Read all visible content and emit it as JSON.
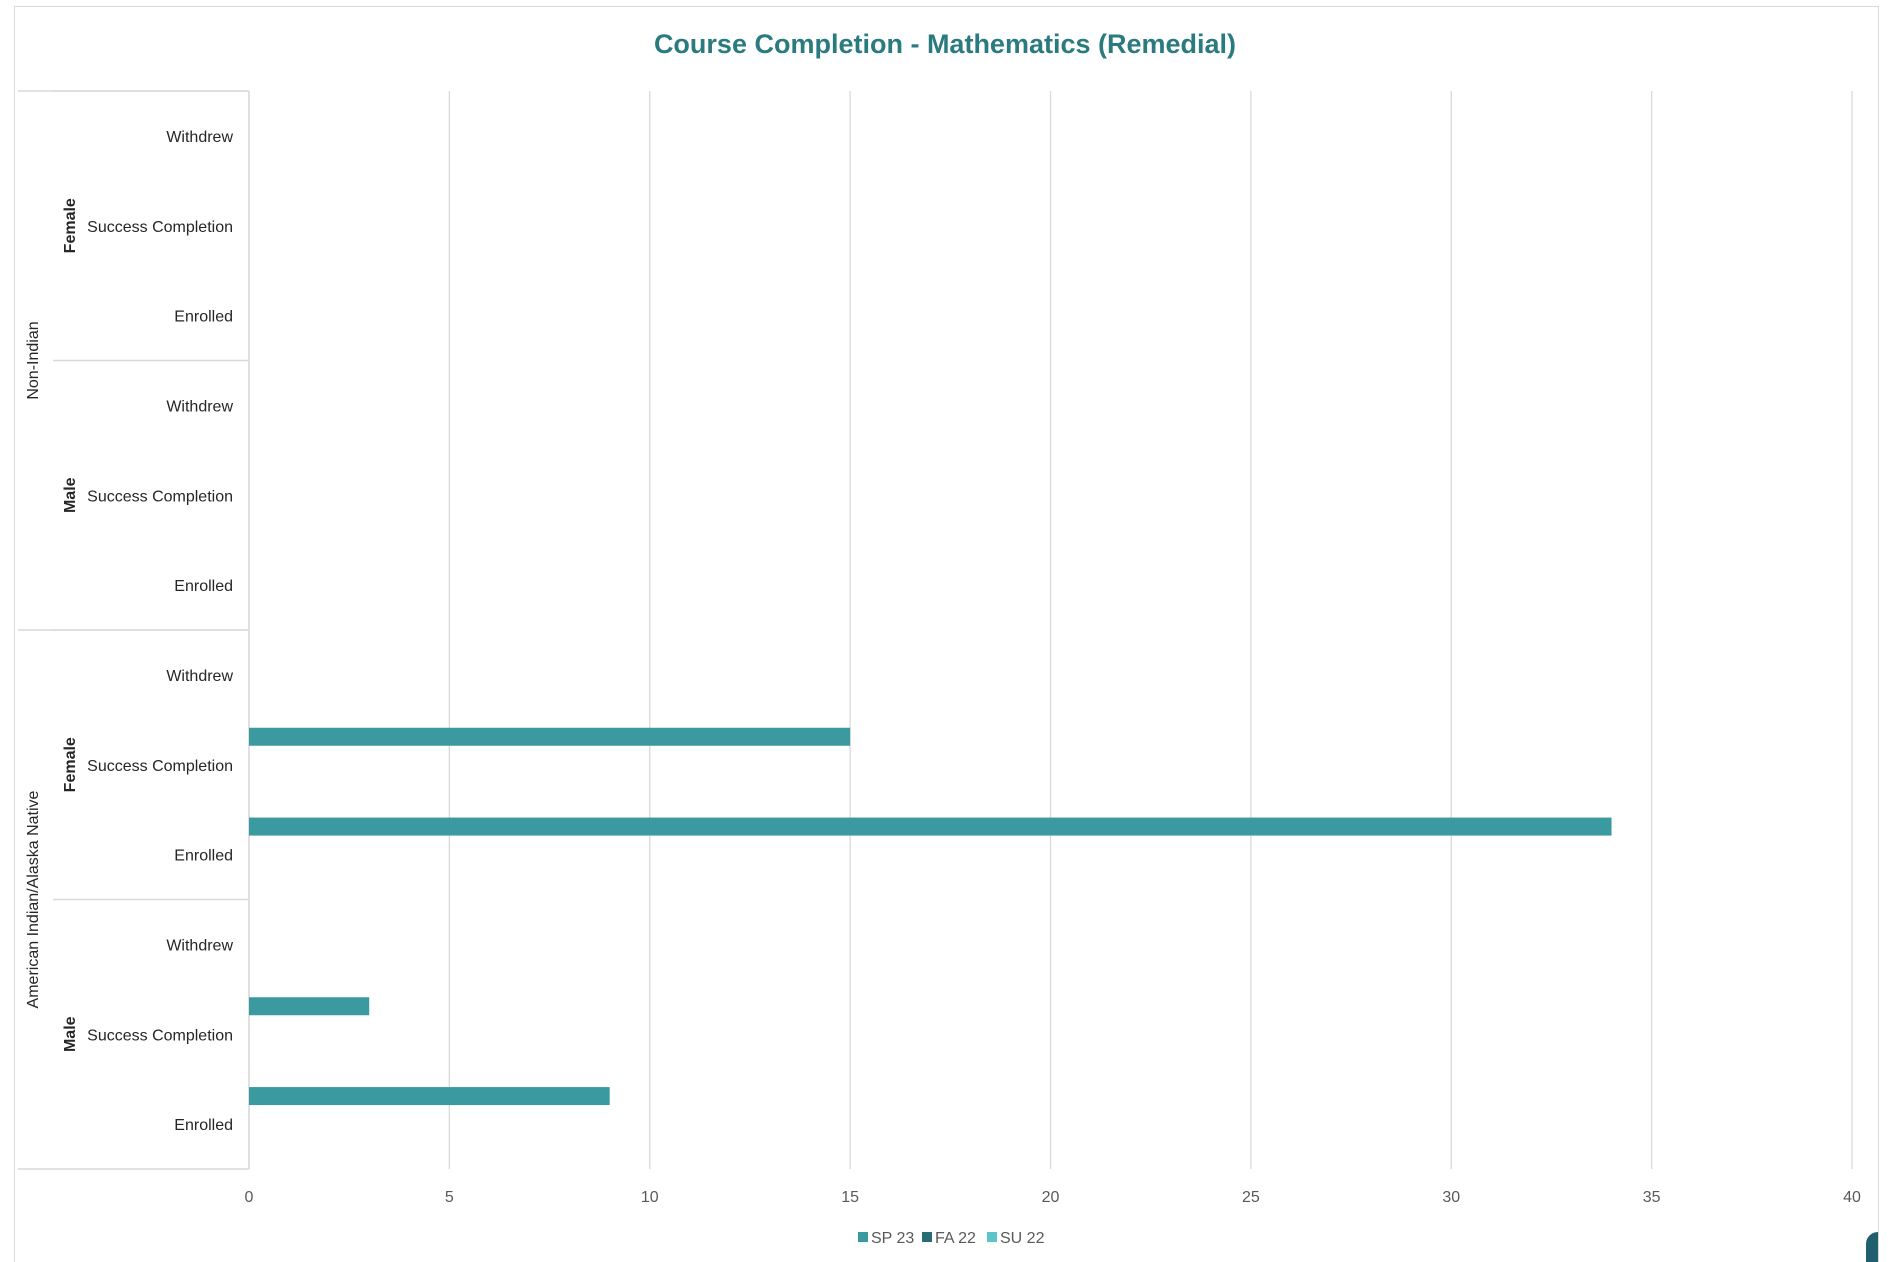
{
  "chart_data": {
    "type": "bar",
    "orientation": "horizontal",
    "title": "Course Completion - Mathematics (Remedial)",
    "xlabel": "",
    "ylabel": "",
    "xlim": [
      0,
      40
    ],
    "x_ticks": [
      0,
      5,
      10,
      15,
      20,
      25,
      30,
      35,
      40
    ],
    "grid": true,
    "legend_position": "bottom",
    "categories": [
      {
        "group": "American Indian/Alaska Native",
        "gender": "Male",
        "status": "Enrolled"
      },
      {
        "group": "American Indian/Alaska Native",
        "gender": "Male",
        "status": "Success Completion"
      },
      {
        "group": "American Indian/Alaska Native",
        "gender": "Male",
        "status": "Withdrew"
      },
      {
        "group": "American Indian/Alaska Native",
        "gender": "Female",
        "status": "Enrolled"
      },
      {
        "group": "American Indian/Alaska Native",
        "gender": "Female",
        "status": "Success Completion"
      },
      {
        "group": "American Indian/Alaska Native",
        "gender": "Female",
        "status": "Withdrew"
      },
      {
        "group": "Non-Indian",
        "gender": "Male",
        "status": "Enrolled"
      },
      {
        "group": "Non-Indian",
        "gender": "Male",
        "status": "Success Completion"
      },
      {
        "group": "Non-Indian",
        "gender": "Male",
        "status": "Withdrew"
      },
      {
        "group": "Non-Indian",
        "gender": "Female",
        "status": "Enrolled"
      },
      {
        "group": "Non-Indian",
        "gender": "Female",
        "status": "Success Completion"
      },
      {
        "group": "Non-Indian",
        "gender": "Female",
        "status": "Withdrew"
      }
    ],
    "groups": [
      "American Indian/Alaska Native",
      "Non-Indian"
    ],
    "genders": [
      "Male",
      "Female"
    ],
    "statuses": [
      "Enrolled",
      "Success Completion",
      "Withdrew"
    ],
    "series": [
      {
        "name": "SP 23",
        "color": "#3a9aa0",
        "values": [
          9,
          3,
          0,
          34,
          15,
          0,
          0,
          0,
          0,
          0,
          0,
          0
        ]
      },
      {
        "name": "FA 22",
        "color": "#276d74",
        "values": [
          0,
          0,
          0,
          0,
          0,
          0,
          0,
          0,
          0,
          0,
          0,
          0
        ]
      },
      {
        "name": "SU 22",
        "color": "#5cc3c9",
        "values": [
          0,
          0,
          0,
          0,
          0,
          0,
          0,
          0,
          0,
          0,
          0,
          0
        ]
      }
    ]
  },
  "colors": {
    "title": "#2a7b7f",
    "axis_text": "#595959",
    "category_text": "#262626",
    "gridline": "#d9d9d9"
  }
}
